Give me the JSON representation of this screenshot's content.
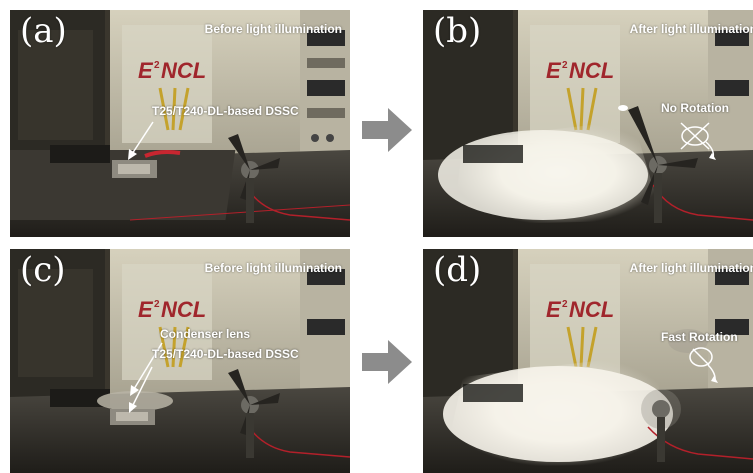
{
  "panels": {
    "a": {
      "label": "(a)",
      "caption": "Before light illumination",
      "annotations": {
        "dssc": "T25/T240-DL-based DSSC"
      }
    },
    "b": {
      "label": "(b)",
      "caption": "After light illumination",
      "annotations": {
        "rotation": "No Rotation"
      }
    },
    "c": {
      "label": "(c)",
      "caption": "Before light illumination",
      "annotations": {
        "lens": "Condenser lens",
        "dssc": "T25/T240-DL-based DSSC"
      }
    },
    "d": {
      "label": "(d)",
      "caption": "After light illumination",
      "annotations": {
        "rotation": "Fast Rotation"
      }
    }
  },
  "equipment_logo": "E²NCL",
  "colors": {
    "arrow": "#8c8c8c",
    "text": "#ffffff",
    "scene_dark": "#2a2720",
    "equipment_cream": "#c9c4b1",
    "illumination": "#f4f1e6",
    "wire_red": "#b3202a"
  },
  "icons": {
    "transition_arrow": "right-arrow-icon",
    "fan": "fan-icon",
    "rotation_indicator": "rotation-indicator-icon"
  }
}
